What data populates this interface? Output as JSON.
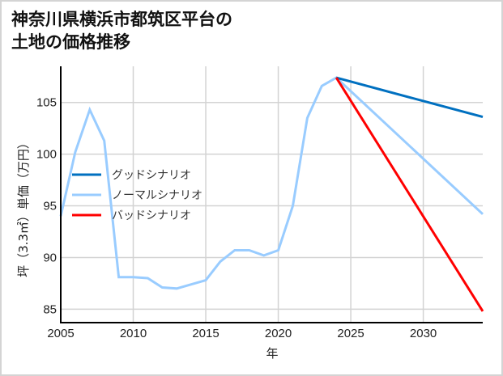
{
  "title": {
    "line1": "神奈川県横浜市都筑区平台の",
    "line2": "土地の価格推移"
  },
  "chart_data": {
    "type": "line",
    "title": "神奈川県横浜市都筑区平台の土地の価格推移",
    "xlabel": "年",
    "ylabel": "坪（3.3㎡）単価（万円）",
    "xlim": [
      2005,
      2034.1
    ],
    "ylim": [
      83.7,
      108.5
    ],
    "xticks": [
      2005,
      2010,
      2015,
      2020,
      2025,
      2030
    ],
    "yticks": [
      85,
      90,
      95,
      100,
      105
    ],
    "grid": true,
    "legend_position": "left-middle",
    "series": [
      {
        "name": "グッドシナリオ",
        "color": "#0070c0",
        "x": [
          2024,
          2034.1
        ],
        "values": [
          107.4,
          103.6
        ]
      },
      {
        "name": "ノーマルシナリオ",
        "color": "#99ccff",
        "x": [
          2005,
          2006,
          2007,
          2008,
          2009,
          2010,
          2011,
          2012,
          2013,
          2014,
          2015,
          2016,
          2017,
          2018,
          2019,
          2020,
          2021,
          2022,
          2023,
          2024,
          2034.1
        ],
        "values": [
          94.0,
          100.2,
          104.3,
          101.3,
          88.1,
          88.1,
          88.0,
          87.1,
          87.0,
          87.4,
          87.8,
          89.6,
          90.7,
          90.7,
          90.2,
          90.7,
          95.0,
          103.5,
          106.6,
          107.4,
          94.2
        ]
      },
      {
        "name": "バッドシナリオ",
        "color": "#ff0000",
        "x": [
          2024,
          2034.1
        ],
        "values": [
          107.4,
          84.8
        ]
      }
    ]
  }
}
